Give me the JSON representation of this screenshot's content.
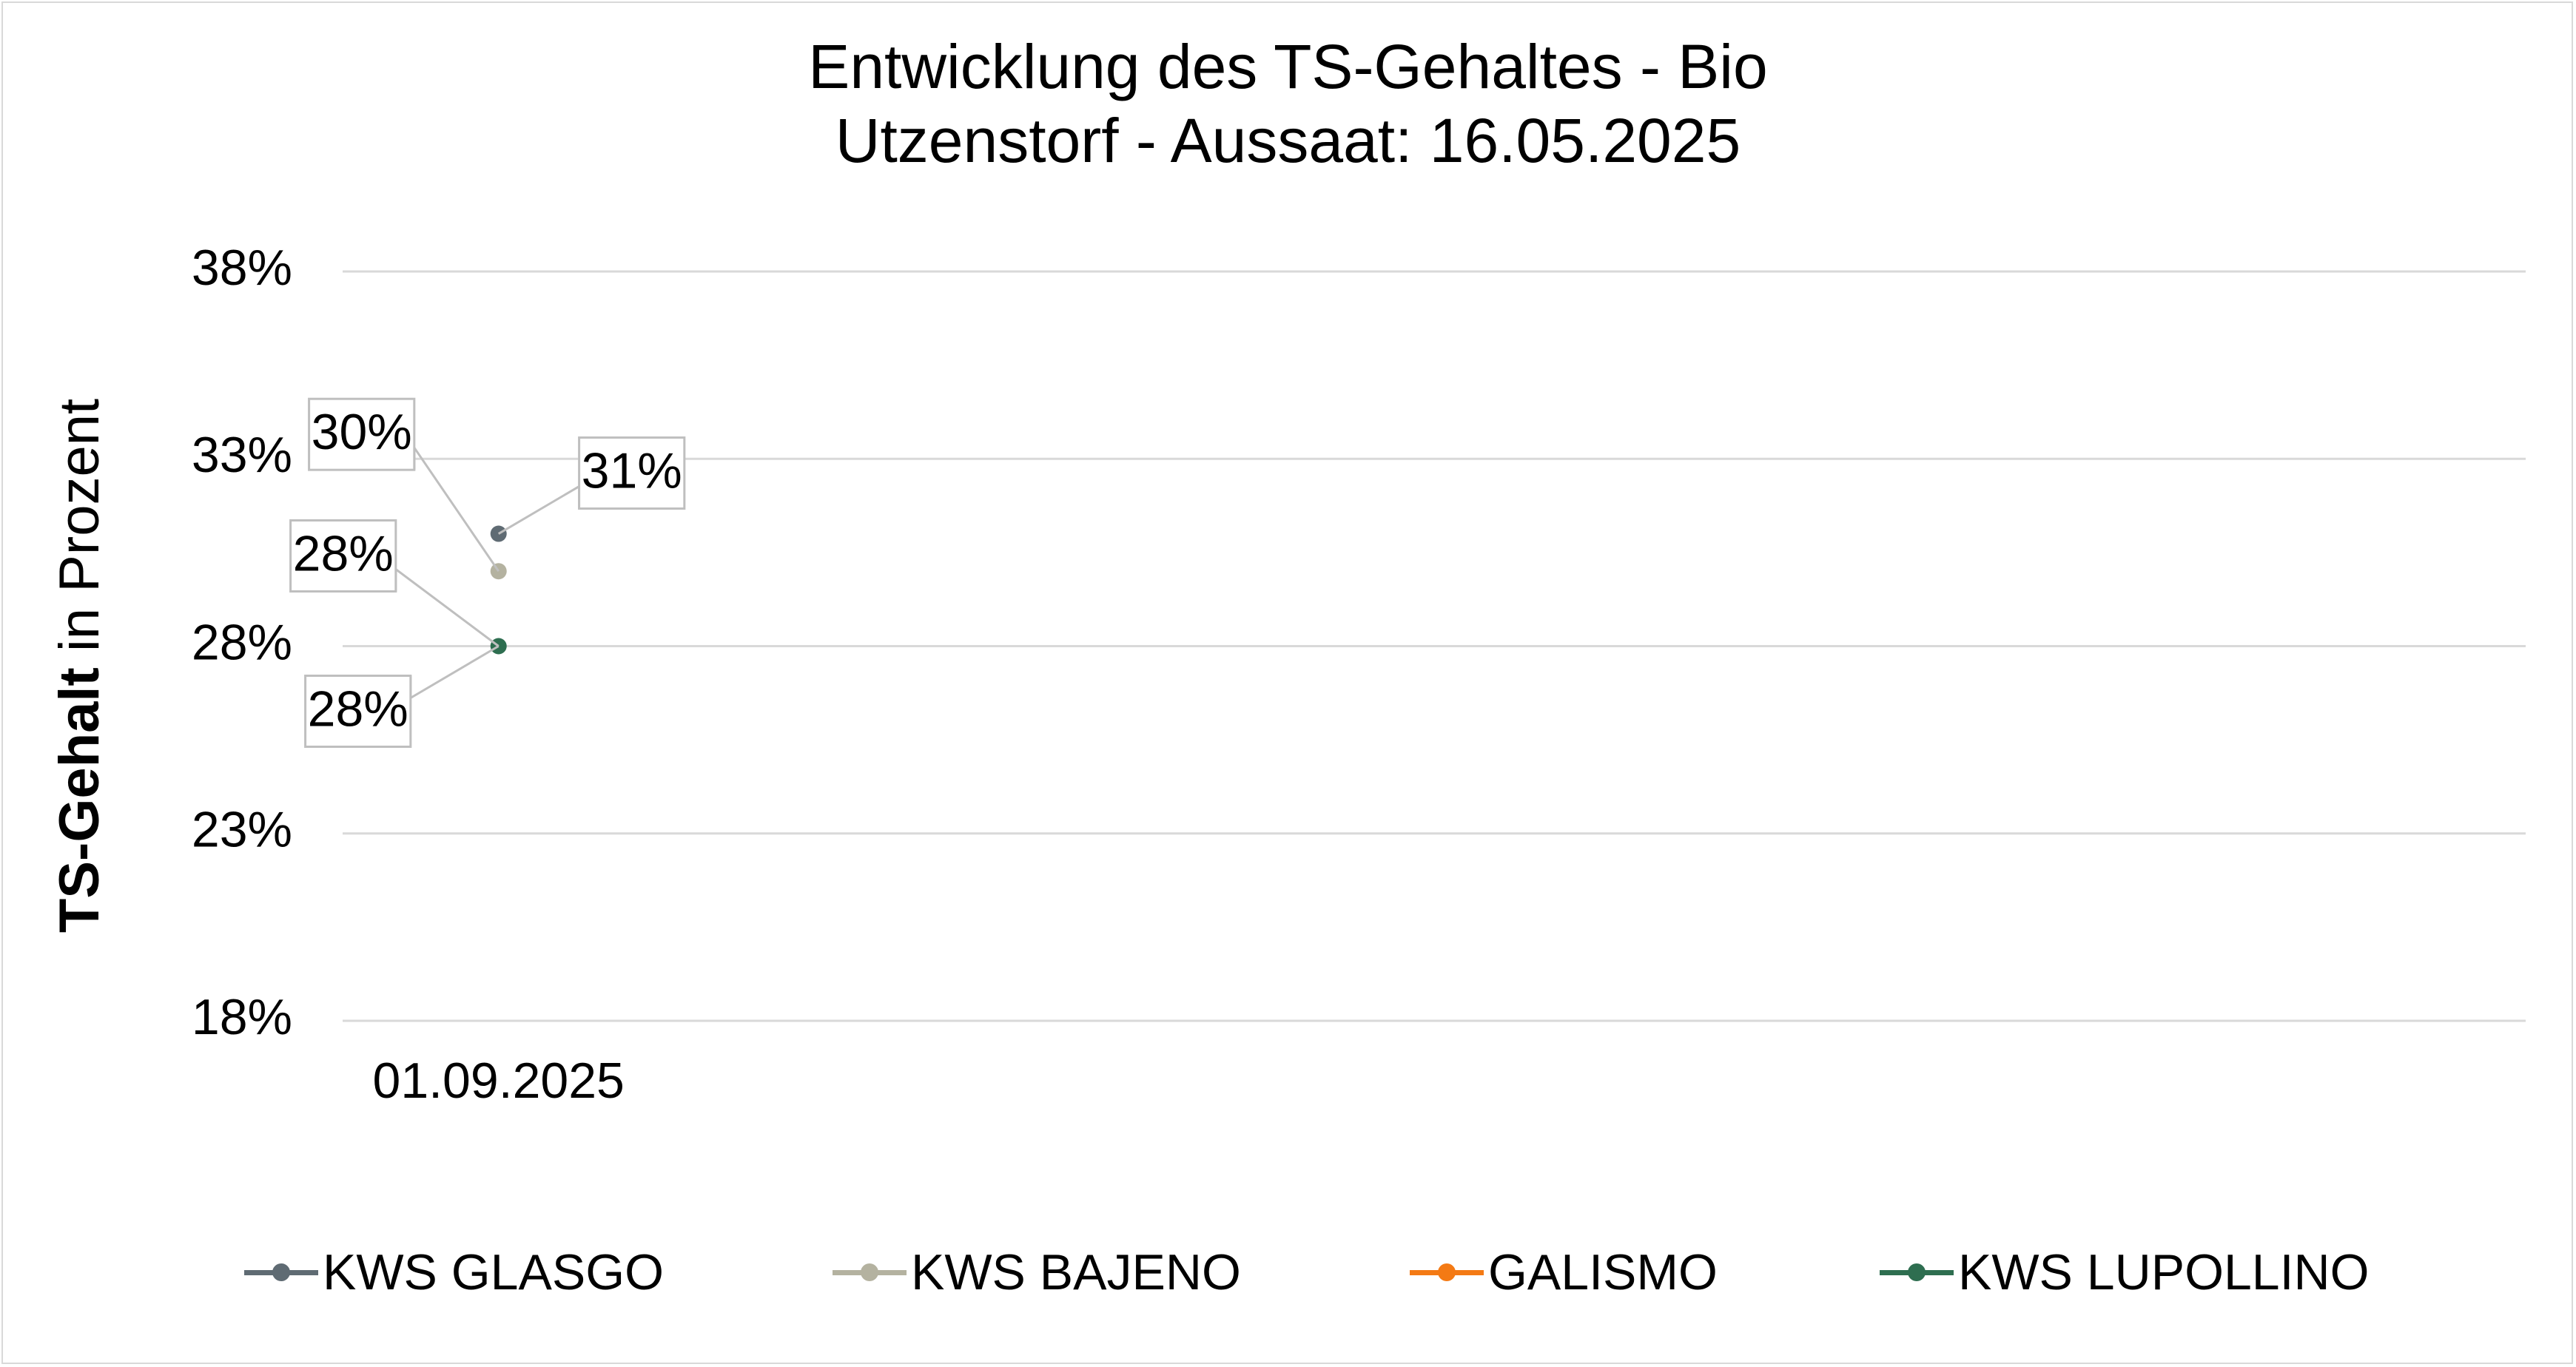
{
  "chart_data": {
    "type": "line",
    "title": "Entwicklung des TS-Gehaltes - Bio",
    "subtitle": "Utzenstorf - Aussaat: 16.05.2025",
    "ylabel_bold": "TS-Gehalt",
    "ylabel_rest": " in Prozent",
    "xlabel": "",
    "categories": [
      "01.09.2025"
    ],
    "y_ticks": [
      "38%",
      "33%",
      "28%",
      "23%",
      "18%"
    ],
    "ylim": [
      18,
      38
    ],
    "grid": true,
    "legend_position": "bottom",
    "series": [
      {
        "name": "KWS GLASGO",
        "color": "#5f6b73",
        "values": [
          31
        ],
        "label": "31%"
      },
      {
        "name": "KWS BAJENO",
        "color": "#b4b2a0",
        "values": [
          30
        ],
        "label": "30%"
      },
      {
        "name": "GALISMO",
        "color": "#f47a14",
        "values": [
          null
        ],
        "label": ""
      },
      {
        "name": "KWS LUPOLLINO",
        "color": "#2e6e50",
        "values": [
          28
        ],
        "label": "28%"
      }
    ],
    "extra_labels": [
      {
        "series": "KWS LUPOLLINO",
        "value": 28,
        "label": "28%"
      }
    ]
  }
}
